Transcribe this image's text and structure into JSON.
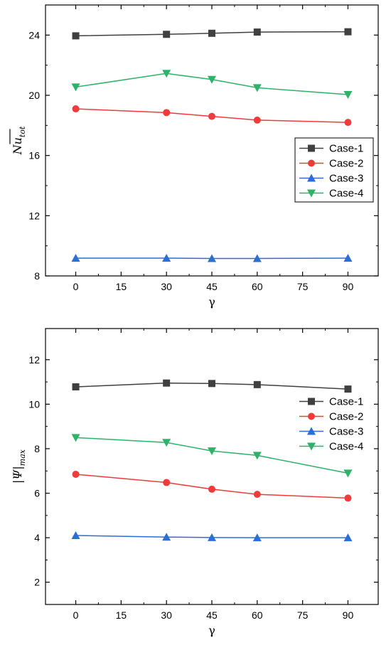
{
  "chart_data": [
    {
      "type": "line",
      "xlabel": "γ",
      "ylabel_main": "Nu",
      "ylabel_sub": "tot",
      "xlim": [
        -10,
        100
      ],
      "ylim": [
        8,
        26
      ],
      "xticks": [
        0,
        15,
        30,
        45,
        60,
        75,
        90
      ],
      "yticks": [
        8,
        12,
        16,
        20,
        24
      ],
      "x": [
        0,
        30,
        45,
        60,
        90
      ],
      "legend_position": "right-middle",
      "series": [
        {
          "name": "Case-1",
          "color": "#404040",
          "marker": "square",
          "values": [
            23.95,
            24.05,
            24.12,
            24.2,
            24.22
          ]
        },
        {
          "name": "Case-2",
          "color": "#ef3b3b",
          "marker": "circle",
          "values": [
            19.1,
            18.85,
            18.6,
            18.35,
            18.2
          ]
        },
        {
          "name": "Case-3",
          "color": "#2b6fd6",
          "marker": "triangle-up",
          "values": [
            9.18,
            9.18,
            9.16,
            9.16,
            9.18
          ]
        },
        {
          "name": "Case-4",
          "color": "#2db368",
          "marker": "triangle-down",
          "values": [
            20.55,
            21.45,
            21.05,
            20.5,
            20.05
          ]
        }
      ]
    },
    {
      "type": "line",
      "xlabel": "γ",
      "ylabel_main": "|Ψ|",
      "ylabel_sub": "max",
      "xlim": [
        -10,
        100
      ],
      "ylim": [
        1,
        13.4
      ],
      "xticks": [
        0,
        15,
        30,
        45,
        60,
        75,
        90
      ],
      "yticks": [
        2,
        4,
        6,
        8,
        10,
        12
      ],
      "x": [
        0,
        30,
        45,
        60,
        90
      ],
      "legend_position": "right-middle",
      "series": [
        {
          "name": "Case-1",
          "color": "#404040",
          "marker": "square",
          "values": [
            10.78,
            10.95,
            10.93,
            10.88,
            10.68
          ]
        },
        {
          "name": "Case-2",
          "color": "#ef3b3b",
          "marker": "circle",
          "values": [
            6.85,
            6.48,
            6.18,
            5.95,
            5.78
          ]
        },
        {
          "name": "Case-3",
          "color": "#2b6fd6",
          "marker": "triangle-up",
          "values": [
            4.1,
            4.03,
            4.01,
            4.0,
            4.0
          ]
        },
        {
          "name": "Case-4",
          "color": "#2db368",
          "marker": "triangle-down",
          "values": [
            8.5,
            8.28,
            7.9,
            7.7,
            6.9
          ]
        }
      ]
    }
  ]
}
